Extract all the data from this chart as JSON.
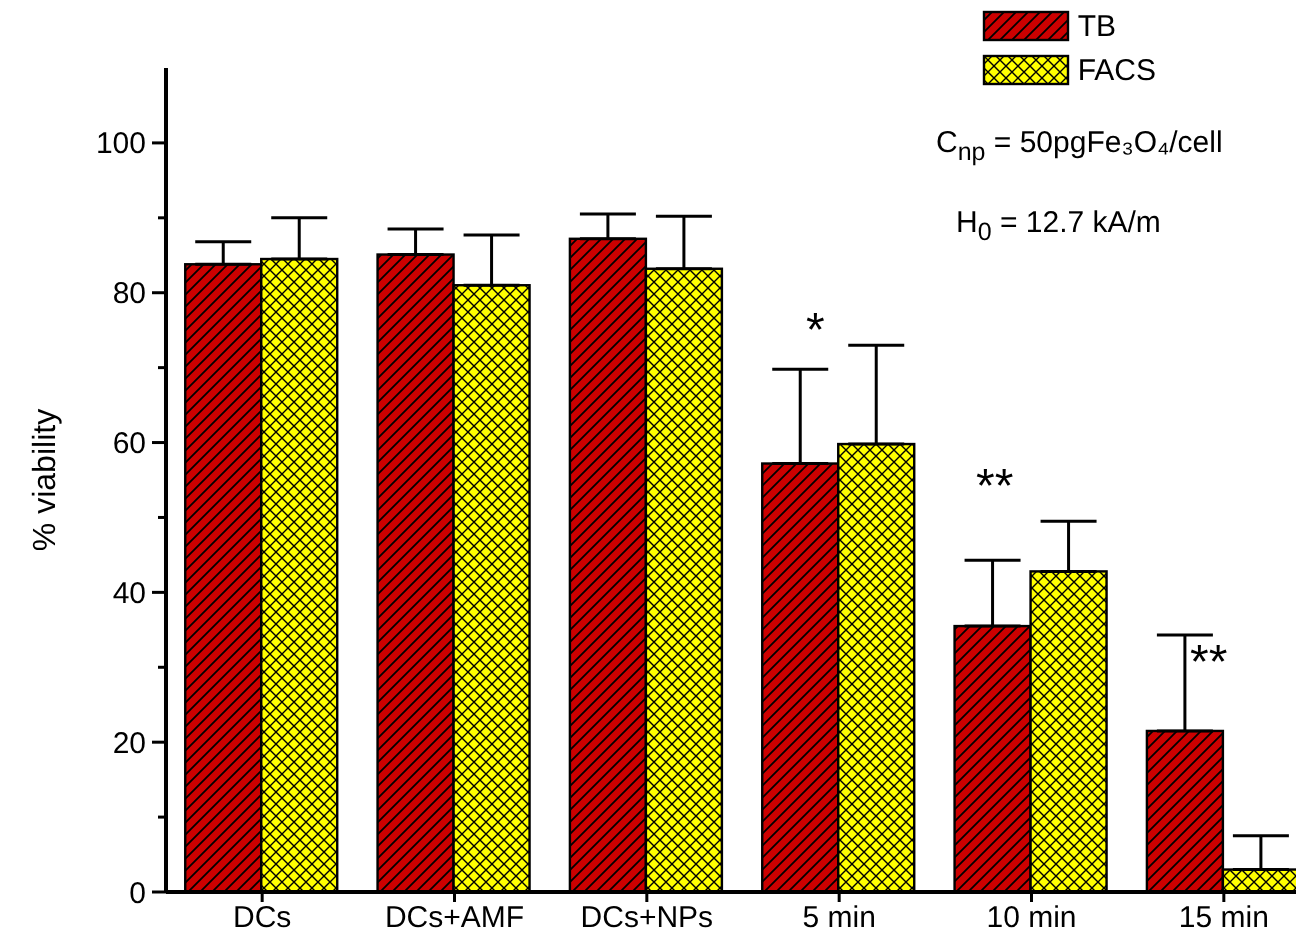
{
  "chart_data": {
    "type": "bar",
    "ylabel": "% viability",
    "categories": [
      "DCs",
      "DCs+AMF",
      "DCs+NPs",
      "5 min",
      "10 min",
      "15 min"
    ],
    "series": [
      {
        "name": "TB",
        "color": "#cc0000",
        "values": [
          83.8,
          85.1,
          87.2,
          57.2,
          35.5,
          21.5
        ],
        "errors": [
          [
            83.8,
            86.8
          ],
          [
            85.1,
            88.5
          ],
          [
            87.2,
            90.5
          ],
          [
            57.2,
            69.8
          ],
          [
            35.5,
            44.3
          ],
          [
            21.5,
            34.3
          ]
        ]
      },
      {
        "name": "FACS",
        "color": "#ffff00",
        "values": [
          84.5,
          81,
          83.2,
          59.8,
          42.8,
          3
        ],
        "errors": [
          [
            84.5,
            90
          ],
          [
            81,
            87.7
          ],
          [
            83.2,
            90.2
          ],
          [
            59.8,
            73
          ],
          [
            42.8,
            49.5
          ],
          [
            3,
            7.5
          ]
        ]
      }
    ],
    "ylim": [
      0,
      110
    ],
    "yticks": [
      0,
      {
        "value": 10,
        "label": null
      },
      20,
      {
        "value": 30,
        "label": null
      },
      40,
      {
        "value": 50,
        "label": null
      },
      60,
      {
        "value": 70,
        "label": null
      },
      80,
      {
        "value": 90,
        "label": null
      },
      100
    ],
    "grid": false,
    "legend": "top right",
    "annotations": [
      "*",
      "**",
      "**",
      "C$_{np}$ = 50pgFe₃O₄/cell",
      "H$_{0}$ = 12.7 kA/m"
    ]
  }
}
